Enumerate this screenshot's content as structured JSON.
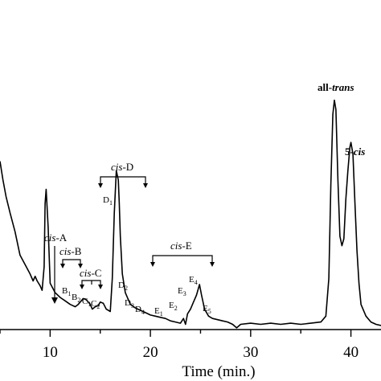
{
  "chart_data": {
    "type": "line",
    "title": "",
    "xlabel": "Time (min.)",
    "ylabel": "",
    "xlim": [
      5.0,
      43.0
    ],
    "ylim": [
      0,
      100
    ],
    "x_ticks": [
      10,
      20,
      30,
      40
    ],
    "grid": false,
    "series": [
      {
        "x": [
          5.0,
          5.3,
          5.6,
          6.0,
          6.5,
          7.0,
          7.5,
          8.0,
          8.3,
          8.5,
          8.7,
          9.0,
          9.2,
          9.4,
          9.5,
          9.6,
          9.8,
          10.0,
          10.5,
          11.0,
          11.5,
          12.0,
          12.5,
          12.8,
          13.0,
          13.3,
          13.6,
          14.0,
          14.2,
          14.5,
          14.8,
          15.0,
          15.3,
          15.6,
          16.0,
          16.2,
          16.4,
          16.6,
          16.8,
          16.9,
          17.0,
          17.2,
          17.5,
          17.8,
          18.0,
          18.5,
          19.0,
          19.5,
          20.0,
          20.5,
          21.0,
          21.5,
          22.0,
          22.5,
          23.0,
          23.3,
          23.5,
          23.7,
          24.0,
          24.3,
          24.6,
          24.9,
          25.1,
          25.4,
          25.8,
          26.2,
          26.7,
          27.2,
          27.7,
          28.2,
          28.6,
          29.0,
          30.0,
          31.0,
          32.0,
          33.0,
          34.0,
          35.0,
          36.0,
          37.0,
          37.5,
          37.8,
          38.0,
          38.2,
          38.35,
          38.5,
          38.7,
          38.9,
          39.1,
          39.3,
          39.5,
          39.7,
          39.9,
          40.0,
          40.2,
          40.4,
          40.6,
          40.8,
          41.0,
          41.5,
          42.0,
          42.5,
          43.0
        ],
        "values": [
          70,
          62,
          55,
          48,
          40,
          30,
          26,
          22,
          19,
          21,
          19,
          17,
          15,
          25,
          52,
          58,
          42,
          18,
          14,
          12,
          10.5,
          9,
          8,
          9,
          10,
          11.5,
          11,
          9,
          7,
          8,
          8.5,
          10,
          9.5,
          7,
          6,
          20,
          48,
          66,
          62,
          52,
          38,
          22,
          14,
          11,
          9,
          7.5,
          6.5,
          5.5,
          4.5,
          4,
          3.5,
          3,
          2,
          1.5,
          1,
          3,
          0.5,
          5,
          7,
          10,
          13,
          17.5,
          13,
          7,
          4,
          3,
          2.5,
          2,
          1.5,
          0.5,
          -1,
          0.5,
          1,
          0.5,
          1,
          0.5,
          1,
          0.5,
          1,
          1.5,
          4,
          20,
          60,
          90,
          96,
          92,
          62,
          38,
          34,
          37,
          54,
          66,
          76,
          78,
          73,
          52,
          32,
          18,
          9,
          4,
          1.5,
          0.5,
          0
        ]
      }
    ],
    "annotations": {
      "peak_labels": [
        "B1",
        "B2",
        "C1",
        "C2",
        "D1",
        "D2",
        "D3",
        "D4",
        "E1",
        "E2",
        "E3",
        "E4",
        "E5",
        "all-trans",
        "5-cis"
      ],
      "groups": [
        "cis-A",
        "cis-B",
        "cis-C",
        "cis-D",
        "cis-E"
      ]
    }
  }
}
